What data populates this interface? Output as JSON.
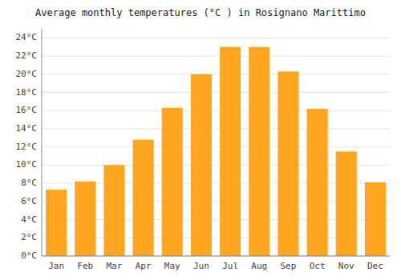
{
  "chart_data": {
    "type": "bar",
    "title": "Average monthly temperatures (°C ) in Rosignano Marittimo",
    "categories": [
      "Jan",
      "Feb",
      "Mar",
      "Apr",
      "May",
      "Jun",
      "Jul",
      "Aug",
      "Sep",
      "Oct",
      "Nov",
      "Dec"
    ],
    "values": [
      7.3,
      8.2,
      10.0,
      12.8,
      16.3,
      20.0,
      23.0,
      23.0,
      20.3,
      16.2,
      11.5,
      8.1
    ],
    "color": "#FFA520",
    "ylim": [
      0,
      25
    ],
    "yticks": [
      {
        "value": 0,
        "label": "0°C"
      },
      {
        "value": 2,
        "label": "2°C"
      },
      {
        "value": 4,
        "label": "4°C"
      },
      {
        "value": 6,
        "label": "6°C"
      },
      {
        "value": 8,
        "label": "8°C"
      },
      {
        "value": 10,
        "label": "10°C"
      },
      {
        "value": 12,
        "label": "12°C"
      },
      {
        "value": 14,
        "label": "14°C"
      },
      {
        "value": 16,
        "label": "16°C"
      },
      {
        "value": 18,
        "label": "18°C"
      },
      {
        "value": 20,
        "label": "20°C"
      },
      {
        "value": 22,
        "label": "22°C"
      },
      {
        "value": 24,
        "label": "24°C"
      }
    ],
    "grid": true
  }
}
